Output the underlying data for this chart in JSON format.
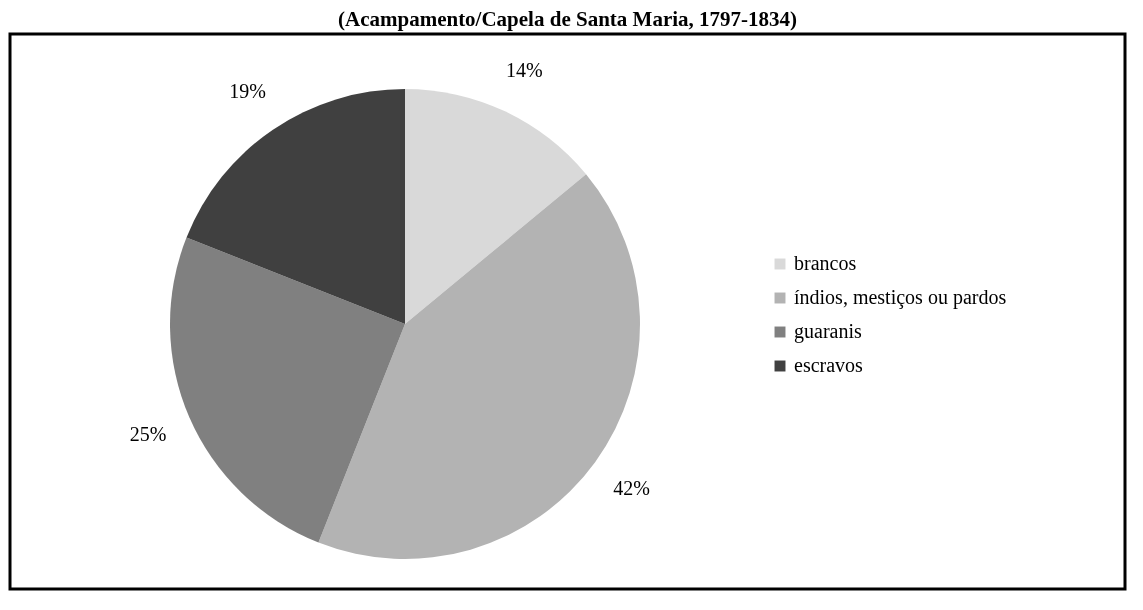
{
  "chart_data": {
    "type": "pie",
    "title": "(Acampamento/Capela de Santa Maria, 1797-1834)",
    "categories": [
      "brancos",
      "índios, mestiços ou pardos",
      "guaranis",
      "escravos"
    ],
    "values": [
      14,
      42,
      25,
      19
    ],
    "value_labels": [
      "14%",
      "42%",
      "25%",
      "19%"
    ],
    "colors": [
      "#d9d9d9",
      "#b3b3b3",
      "#808080",
      "#404040"
    ],
    "legend": "right"
  }
}
